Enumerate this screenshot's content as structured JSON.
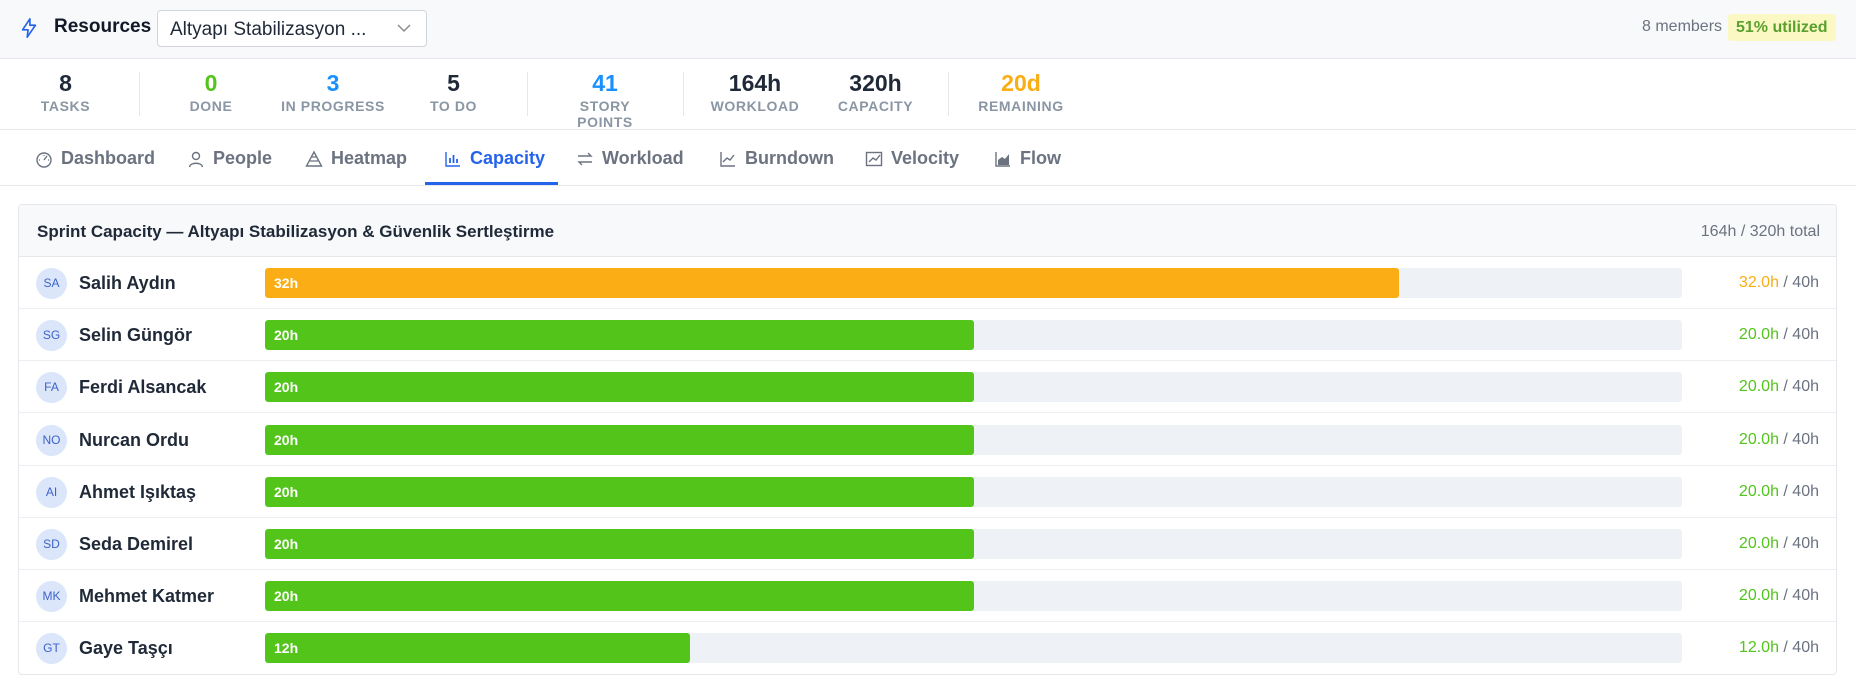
{
  "header": {
    "title": "Resources",
    "icon": "bolt-icon",
    "sprint_select_value": "Altyapı Stabilizasyon ...",
    "members": "8 members",
    "utilized": "51% utilized"
  },
  "stats": [
    {
      "value": "8",
      "label": "TASKS",
      "color": "#1f2937"
    },
    {
      "value": "0",
      "label": "DONE",
      "color": "#52c41a"
    },
    {
      "value": "3",
      "label": "IN PROGRESS",
      "color": "#1890ff"
    },
    {
      "value": "5",
      "label": "TO DO",
      "color": "#1f2937"
    },
    {
      "value": "41",
      "label": "STORY POINTS",
      "color": "#1890ff"
    },
    {
      "value": "164h",
      "label": "WORKLOAD",
      "color": "#1f2937"
    },
    {
      "value": "320h",
      "label": "CAPACITY",
      "color": "#1f2937"
    },
    {
      "value": "20d",
      "label": "REMAINING",
      "color": "#faad14"
    }
  ],
  "tabs": [
    {
      "label": "Dashboard",
      "icon": "dashboard-icon"
    },
    {
      "label": "People",
      "icon": "user-icon"
    },
    {
      "label": "Heatmap",
      "icon": "heatmap-icon"
    },
    {
      "label": "Capacity",
      "icon": "bar-chart-icon",
      "active": true
    },
    {
      "label": "Workload",
      "icon": "swap-icon"
    },
    {
      "label": "Burndown",
      "icon": "line-chart-icon"
    },
    {
      "label": "Velocity",
      "icon": "stock-icon"
    },
    {
      "label": "Flow",
      "icon": "area-chart-icon"
    }
  ],
  "panel": {
    "title": "Sprint Capacity — Altyapı Stabilizasyon & Güvenlik Sertleştirme",
    "total": "164h / 320h total"
  },
  "colors": {
    "over": "#faad14",
    "ok": "#52c41a",
    "accent": "#2563eb"
  },
  "people": [
    {
      "initials": "SA",
      "name": "Salih Aydın",
      "bar_label": "32h",
      "hours": 32,
      "hours_text": "32.0h",
      "capacity_text": " / 40h",
      "status": "over"
    },
    {
      "initials": "SG",
      "name": "Selin Güngör",
      "bar_label": "20h",
      "hours": 20,
      "hours_text": "20.0h",
      "capacity_text": " / 40h",
      "status": "ok"
    },
    {
      "initials": "FA",
      "name": "Ferdi Alsancak",
      "bar_label": "20h",
      "hours": 20,
      "hours_text": "20.0h",
      "capacity_text": " / 40h",
      "status": "ok"
    },
    {
      "initials": "NO",
      "name": "Nurcan Ordu",
      "bar_label": "20h",
      "hours": 20,
      "hours_text": "20.0h",
      "capacity_text": " / 40h",
      "status": "ok"
    },
    {
      "initials": "AI",
      "name": "Ahmet Işıktaş",
      "bar_label": "20h",
      "hours": 20,
      "hours_text": "20.0h",
      "capacity_text": " / 40h",
      "status": "ok"
    },
    {
      "initials": "SD",
      "name": "Seda Demirel",
      "bar_label": "20h",
      "hours": 20,
      "hours_text": "20.0h",
      "capacity_text": " / 40h",
      "status": "ok"
    },
    {
      "initials": "MK",
      "name": "Mehmet Katmer",
      "bar_label": "20h",
      "hours": 20,
      "hours_text": "20.0h",
      "capacity_text": " / 40h",
      "status": "ok"
    },
    {
      "initials": "GT",
      "name": "Gaye Taşçı",
      "bar_label": "12h",
      "hours": 12,
      "hours_text": "12.0h",
      "capacity_text": " / 40h",
      "status": "ok"
    }
  ]
}
